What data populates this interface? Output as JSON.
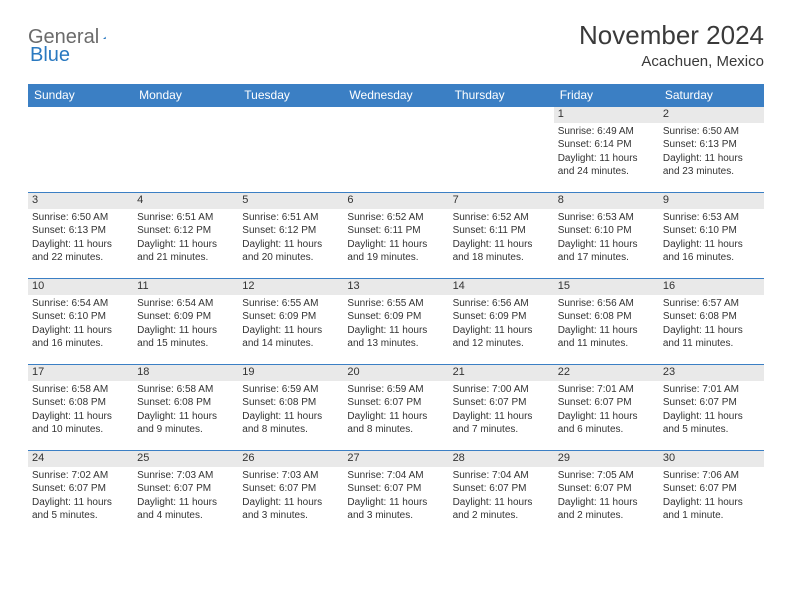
{
  "logo": {
    "word1": "General",
    "word2": "Blue"
  },
  "title": "November 2024",
  "location": "Acachuen, Mexico",
  "colors": {
    "header_bg": "#3b7fc4",
    "header_text": "#ffffff",
    "daynum_bg": "#e9e9e9",
    "border": "#3b7fc4",
    "logo_gray": "#6b6b6b",
    "logo_blue": "#2a79c0"
  },
  "weekdays": [
    "Sunday",
    "Monday",
    "Tuesday",
    "Wednesday",
    "Thursday",
    "Friday",
    "Saturday"
  ],
  "weeks": [
    [
      null,
      null,
      null,
      null,
      null,
      {
        "n": "1",
        "sr": "6:49 AM",
        "ss": "6:14 PM",
        "dl": "11 hours and 24 minutes."
      },
      {
        "n": "2",
        "sr": "6:50 AM",
        "ss": "6:13 PM",
        "dl": "11 hours and 23 minutes."
      }
    ],
    [
      {
        "n": "3",
        "sr": "6:50 AM",
        "ss": "6:13 PM",
        "dl": "11 hours and 22 minutes."
      },
      {
        "n": "4",
        "sr": "6:51 AM",
        "ss": "6:12 PM",
        "dl": "11 hours and 21 minutes."
      },
      {
        "n": "5",
        "sr": "6:51 AM",
        "ss": "6:12 PM",
        "dl": "11 hours and 20 minutes."
      },
      {
        "n": "6",
        "sr": "6:52 AM",
        "ss": "6:11 PM",
        "dl": "11 hours and 19 minutes."
      },
      {
        "n": "7",
        "sr": "6:52 AM",
        "ss": "6:11 PM",
        "dl": "11 hours and 18 minutes."
      },
      {
        "n": "8",
        "sr": "6:53 AM",
        "ss": "6:10 PM",
        "dl": "11 hours and 17 minutes."
      },
      {
        "n": "9",
        "sr": "6:53 AM",
        "ss": "6:10 PM",
        "dl": "11 hours and 16 minutes."
      }
    ],
    [
      {
        "n": "10",
        "sr": "6:54 AM",
        "ss": "6:10 PM",
        "dl": "11 hours and 16 minutes."
      },
      {
        "n": "11",
        "sr": "6:54 AM",
        "ss": "6:09 PM",
        "dl": "11 hours and 15 minutes."
      },
      {
        "n": "12",
        "sr": "6:55 AM",
        "ss": "6:09 PM",
        "dl": "11 hours and 14 minutes."
      },
      {
        "n": "13",
        "sr": "6:55 AM",
        "ss": "6:09 PM",
        "dl": "11 hours and 13 minutes."
      },
      {
        "n": "14",
        "sr": "6:56 AM",
        "ss": "6:09 PM",
        "dl": "11 hours and 12 minutes."
      },
      {
        "n": "15",
        "sr": "6:56 AM",
        "ss": "6:08 PM",
        "dl": "11 hours and 11 minutes."
      },
      {
        "n": "16",
        "sr": "6:57 AM",
        "ss": "6:08 PM",
        "dl": "11 hours and 11 minutes."
      }
    ],
    [
      {
        "n": "17",
        "sr": "6:58 AM",
        "ss": "6:08 PM",
        "dl": "11 hours and 10 minutes."
      },
      {
        "n": "18",
        "sr": "6:58 AM",
        "ss": "6:08 PM",
        "dl": "11 hours and 9 minutes."
      },
      {
        "n": "19",
        "sr": "6:59 AM",
        "ss": "6:08 PM",
        "dl": "11 hours and 8 minutes."
      },
      {
        "n": "20",
        "sr": "6:59 AM",
        "ss": "6:07 PM",
        "dl": "11 hours and 8 minutes."
      },
      {
        "n": "21",
        "sr": "7:00 AM",
        "ss": "6:07 PM",
        "dl": "11 hours and 7 minutes."
      },
      {
        "n": "22",
        "sr": "7:01 AM",
        "ss": "6:07 PM",
        "dl": "11 hours and 6 minutes."
      },
      {
        "n": "23",
        "sr": "7:01 AM",
        "ss": "6:07 PM",
        "dl": "11 hours and 5 minutes."
      }
    ],
    [
      {
        "n": "24",
        "sr": "7:02 AM",
        "ss": "6:07 PM",
        "dl": "11 hours and 5 minutes."
      },
      {
        "n": "25",
        "sr": "7:03 AM",
        "ss": "6:07 PM",
        "dl": "11 hours and 4 minutes."
      },
      {
        "n": "26",
        "sr": "7:03 AM",
        "ss": "6:07 PM",
        "dl": "11 hours and 3 minutes."
      },
      {
        "n": "27",
        "sr": "7:04 AM",
        "ss": "6:07 PM",
        "dl": "11 hours and 3 minutes."
      },
      {
        "n": "28",
        "sr": "7:04 AM",
        "ss": "6:07 PM",
        "dl": "11 hours and 2 minutes."
      },
      {
        "n": "29",
        "sr": "7:05 AM",
        "ss": "6:07 PM",
        "dl": "11 hours and 2 minutes."
      },
      {
        "n": "30",
        "sr": "7:06 AM",
        "ss": "6:07 PM",
        "dl": "11 hours and 1 minute."
      }
    ]
  ],
  "labels": {
    "sunrise": "Sunrise:",
    "sunset": "Sunset:",
    "daylight": "Daylight:"
  }
}
